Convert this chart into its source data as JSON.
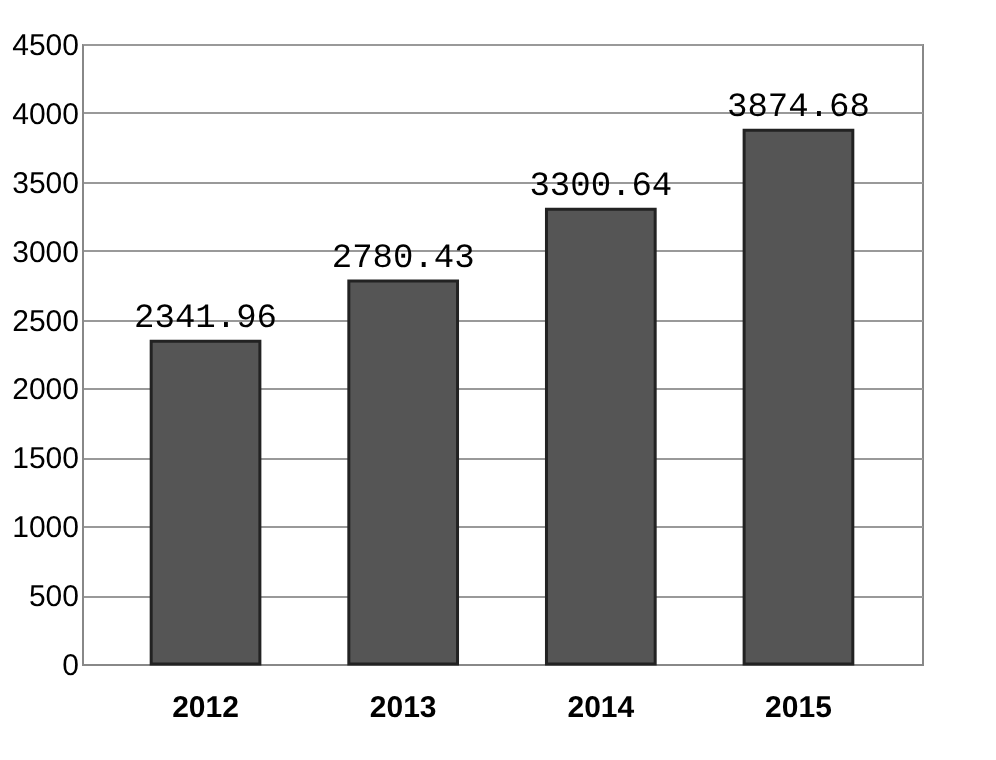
{
  "chart_data": {
    "type": "bar",
    "categories": [
      "2012",
      "2013",
      "2014",
      "2015"
    ],
    "values": [
      2341.96,
      2780.43,
      3300.64,
      3874.68
    ],
    "color": "#555555",
    "ylim": [
      0,
      4500
    ],
    "yticks": [
      0,
      500,
      1000,
      1500,
      2000,
      2500,
      3000,
      3500,
      4000,
      4500
    ],
    "grid": "y",
    "data_labels": true
  }
}
